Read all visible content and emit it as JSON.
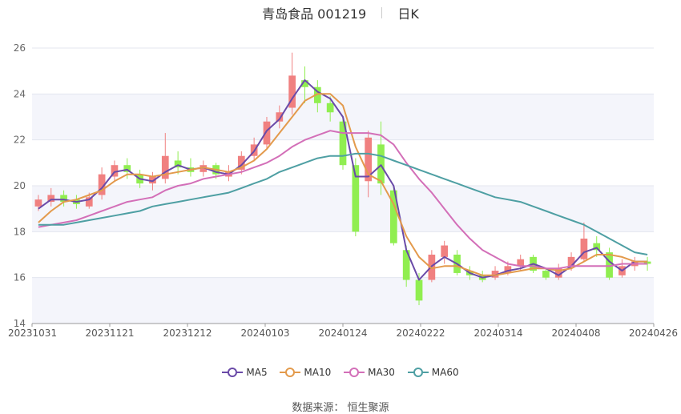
{
  "header": {
    "stock": "青岛食品 001219",
    "period": "日K"
  },
  "legend": [
    {
      "name": "MA5",
      "color": "#6a4aa8"
    },
    {
      "name": "MA10",
      "color": "#e39a4c"
    },
    {
      "name": "MA30",
      "color": "#d36fb8"
    },
    {
      "name": "MA60",
      "color": "#4e9fa3"
    }
  ],
  "source": "数据来源：  恒生聚源",
  "chart_data": {
    "type": "candlestick",
    "ylim": [
      14,
      26
    ],
    "yticks": [
      14,
      16,
      18,
      20,
      22,
      24,
      26
    ],
    "xlabels": [
      "20231031",
      "20231121",
      "20231212",
      "20240103",
      "20240124",
      "20240222",
      "20240314",
      "20240408",
      "20240426"
    ],
    "up_color": "#f08080",
    "down_color": "#90ee50",
    "grid": true,
    "series": [
      {
        "name": "MA5",
        "color": "#6a4aa8",
        "values": [
          19.0,
          19.4,
          19.4,
          19.3,
          19.4,
          19.9,
          20.6,
          20.7,
          20.3,
          20.2,
          20.6,
          20.9,
          20.7,
          20.8,
          20.6,
          20.5,
          20.9,
          21.5,
          22.4,
          22.9,
          23.8,
          24.6,
          24.1,
          23.8,
          23.0,
          20.4,
          20.4,
          20.9,
          20.0,
          17.2,
          15.9,
          16.5,
          16.9,
          16.6,
          16.2,
          16.0,
          16.1,
          16.3,
          16.4,
          16.6,
          16.4,
          16.1,
          16.5,
          17.1,
          17.3,
          16.7,
          16.3,
          16.7,
          16.7
        ]
      },
      {
        "name": "MA10",
        "color": "#e39a4c",
        "values": [
          18.4,
          18.9,
          19.3,
          19.4,
          19.6,
          19.8,
          20.2,
          20.5,
          20.5,
          20.4,
          20.5,
          20.6,
          20.7,
          20.8,
          20.7,
          20.6,
          20.8,
          21.1,
          21.6,
          22.3,
          23.0,
          23.7,
          24.0,
          24.0,
          23.5,
          21.7,
          20.5,
          20.2,
          19.2,
          17.8,
          16.9,
          16.4,
          16.5,
          16.5,
          16.3,
          16.1,
          16.1,
          16.2,
          16.3,
          16.4,
          16.4,
          16.3,
          16.4,
          16.7,
          17.0,
          17.0,
          16.9,
          16.7,
          16.7
        ]
      },
      {
        "name": "MA30",
        "color": "#d36fb8",
        "values": [
          18.2,
          18.3,
          18.4,
          18.5,
          18.7,
          18.9,
          19.1,
          19.3,
          19.4,
          19.5,
          19.8,
          20.0,
          20.1,
          20.3,
          20.4,
          20.5,
          20.6,
          20.8,
          21.0,
          21.3,
          21.7,
          22.0,
          22.2,
          22.4,
          22.3,
          22.3,
          22.3,
          22.2,
          21.8,
          21.0,
          20.3,
          19.7,
          19.0,
          18.3,
          17.7,
          17.2,
          16.9,
          16.6,
          16.5,
          16.5,
          16.4,
          16.4,
          16.5,
          16.5,
          16.5,
          16.5,
          16.6,
          16.6,
          16.6
        ]
      },
      {
        "name": "MA60",
        "color": "#4e9fa3",
        "values": [
          18.3,
          18.3,
          18.3,
          18.4,
          18.5,
          18.6,
          18.7,
          18.8,
          18.9,
          19.1,
          19.2,
          19.3,
          19.4,
          19.5,
          19.6,
          19.7,
          19.9,
          20.1,
          20.3,
          20.6,
          20.8,
          21.0,
          21.2,
          21.3,
          21.3,
          21.4,
          21.4,
          21.3,
          21.1,
          20.9,
          20.7,
          20.5,
          20.3,
          20.1,
          19.9,
          19.7,
          19.5,
          19.4,
          19.3,
          19.1,
          18.9,
          18.7,
          18.5,
          18.3,
          18.0,
          17.7,
          17.4,
          17.1,
          17.0
        ]
      }
    ],
    "candles": [
      [
        19.1,
        19.4,
        18.9,
        19.6
      ],
      [
        19.3,
        19.6,
        19.1,
        19.9
      ],
      [
        19.6,
        19.3,
        19.1,
        19.8
      ],
      [
        19.4,
        19.2,
        19.0,
        19.6
      ],
      [
        19.1,
        19.5,
        19.0,
        19.7
      ],
      [
        19.6,
        20.5,
        19.4,
        20.8
      ],
      [
        20.4,
        20.9,
        20.2,
        21.1
      ],
      [
        20.9,
        20.6,
        20.3,
        21.2
      ],
      [
        20.5,
        20.1,
        19.9,
        20.7
      ],
      [
        20.1,
        20.4,
        19.8,
        20.6
      ],
      [
        20.3,
        21.3,
        20.1,
        22.3
      ],
      [
        21.1,
        20.8,
        20.5,
        21.5
      ],
      [
        20.8,
        20.6,
        20.4,
        21.2
      ],
      [
        20.6,
        20.9,
        20.4,
        21.1
      ],
      [
        20.9,
        20.5,
        20.3,
        21.0
      ],
      [
        20.4,
        20.6,
        20.2,
        20.9
      ],
      [
        20.7,
        21.3,
        20.5,
        21.5
      ],
      [
        21.3,
        21.8,
        21.1,
        22.1
      ],
      [
        21.8,
        22.8,
        21.6,
        23.0
      ],
      [
        22.8,
        23.2,
        22.5,
        23.5
      ],
      [
        23.4,
        24.8,
        23.1,
        25.8
      ],
      [
        24.6,
        24.3,
        23.6,
        25.2
      ],
      [
        24.3,
        23.6,
        23.2,
        24.6
      ],
      [
        23.6,
        23.2,
        22.8,
        23.9
      ],
      [
        22.8,
        20.9,
        20.7,
        23.0
      ],
      [
        20.9,
        18.0,
        17.8,
        21.2
      ],
      [
        20.2,
        22.1,
        19.5,
        22.4
      ],
      [
        21.8,
        20.1,
        19.6,
        22.8
      ],
      [
        19.8,
        17.5,
        17.4,
        20.0
      ],
      [
        17.2,
        15.9,
        15.6,
        17.4
      ],
      [
        15.9,
        15.0,
        14.8,
        16.2
      ],
      [
        15.9,
        17.0,
        15.8,
        17.2
      ],
      [
        16.9,
        17.4,
        16.6,
        17.6
      ],
      [
        17.0,
        16.2,
        16.1,
        17.2
      ],
      [
        16.3,
        16.1,
        15.9,
        16.5
      ],
      [
        16.1,
        15.9,
        15.8,
        16.3
      ],
      [
        16.0,
        16.3,
        15.9,
        16.5
      ],
      [
        16.2,
        16.5,
        16.1,
        16.7
      ],
      [
        16.5,
        16.8,
        16.3,
        17.0
      ],
      [
        16.9,
        16.3,
        16.2,
        17.0
      ],
      [
        16.3,
        16.0,
        15.9,
        16.4
      ],
      [
        16.0,
        16.4,
        15.9,
        16.6
      ],
      [
        16.5,
        16.9,
        16.3,
        17.1
      ],
      [
        16.8,
        17.7,
        16.7,
        18.4
      ],
      [
        17.5,
        17.2,
        16.9,
        17.8
      ],
      [
        17.1,
        16.0,
        15.9,
        17.3
      ],
      [
        16.1,
        16.5,
        16.0,
        16.8
      ],
      [
        16.5,
        16.7,
        16.3,
        16.9
      ],
      [
        16.7,
        16.6,
        16.3,
        16.9
      ]
    ]
  }
}
